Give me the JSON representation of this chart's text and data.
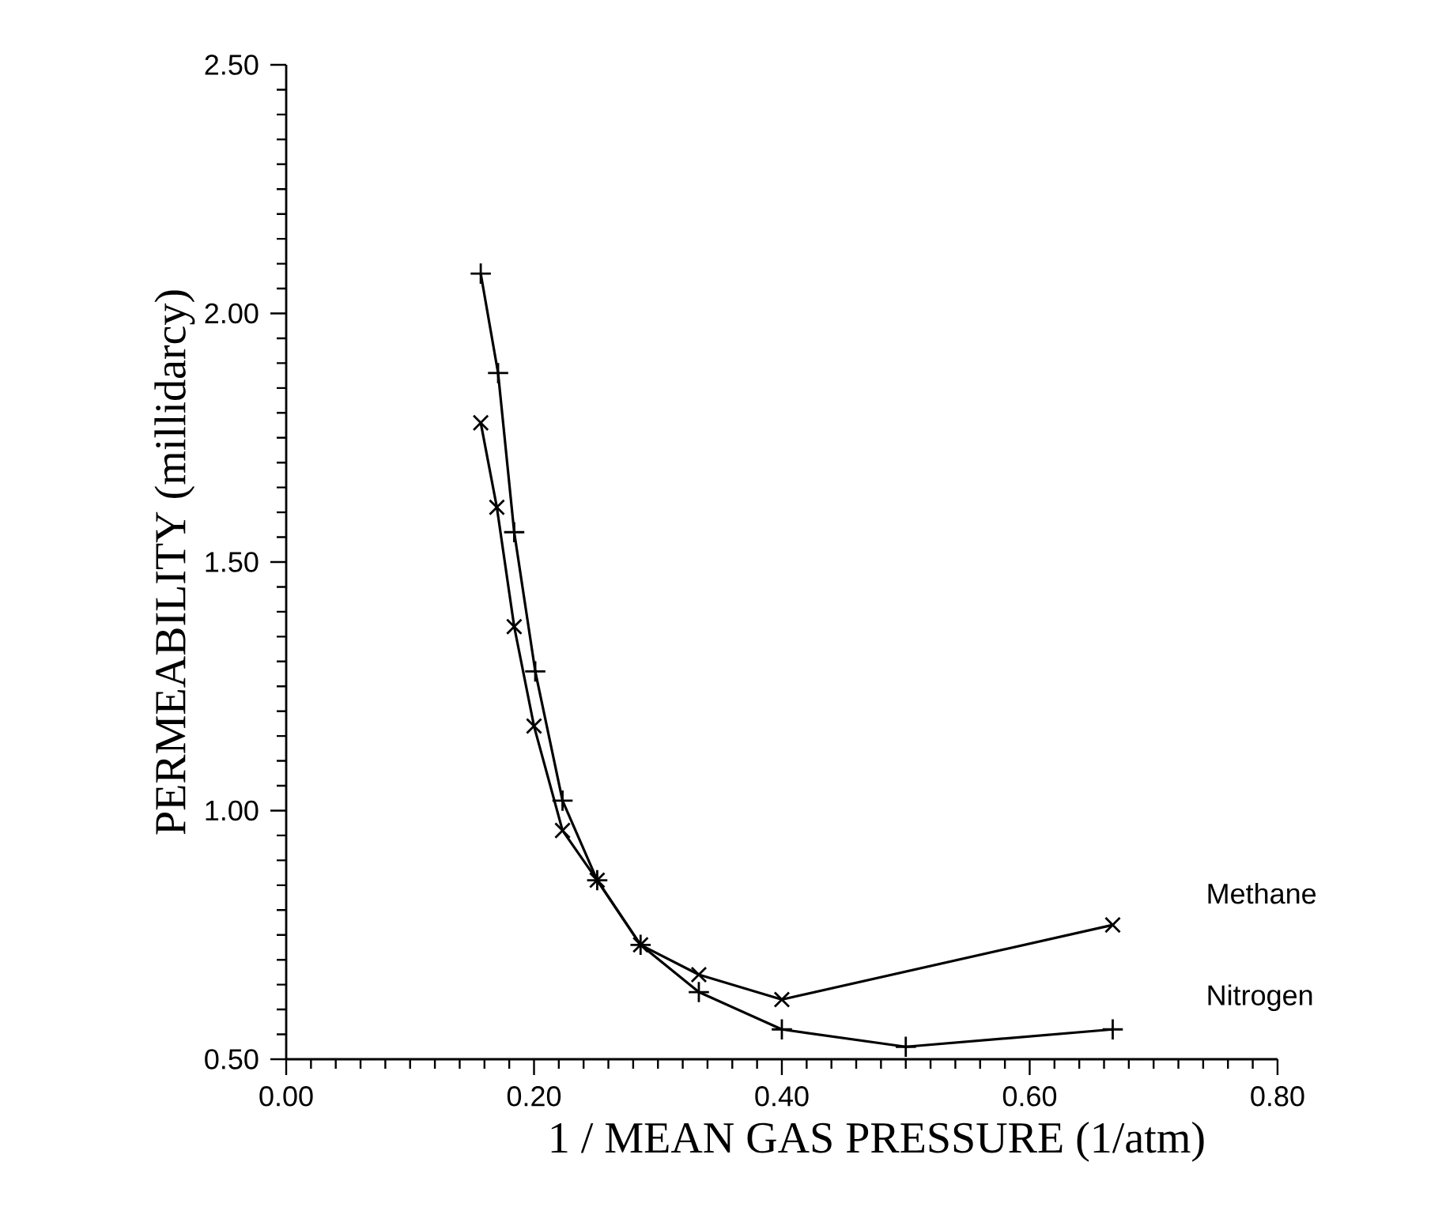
{
  "chart_data": {
    "type": "line",
    "xlabel": "1 / MEAN GAS PRESSURE (1/atm)",
    "ylabel": "PERMEABILITY (millidarcy)",
    "xlim": [
      0.0,
      0.8
    ],
    "ylim": [
      0.5,
      2.5
    ],
    "xticks": [
      {
        "value": 0,
        "label": "0.00"
      },
      {
        "value": 0.2,
        "label": "0.20"
      },
      {
        "value": 0.4,
        "label": "0.40"
      },
      {
        "value": 0.6,
        "label": "0.60"
      },
      {
        "value": 0.8,
        "label": "0.80"
      }
    ],
    "yticks": [
      {
        "value": 0.5,
        "label": "0.50"
      },
      {
        "value": 1,
        "label": "1.00"
      },
      {
        "value": 1.5,
        "label": "1.50"
      },
      {
        "value": 2,
        "label": "2.00"
      },
      {
        "value": 2.5,
        "label": "2.50"
      }
    ],
    "grid": false,
    "legend": false,
    "line_style": "solid",
    "series": [
      {
        "name": "Methane",
        "color": "#000000",
        "marker": "cross",
        "x": [
          0.157,
          0.17,
          0.184,
          0.2,
          0.223,
          0.251,
          0.286,
          0.333,
          0.4,
          0.667
        ],
        "values": [
          1.78,
          1.61,
          1.37,
          1.17,
          0.96,
          0.86,
          0.73,
          0.67,
          0.62,
          0.77
        ]
      },
      {
        "name": "Nitrogen",
        "color": "#000000",
        "marker": "plus",
        "x": [
          0.157,
          0.171,
          0.184,
          0.201,
          0.223,
          0.251,
          0.286,
          0.333,
          0.4,
          0.5,
          0.667
        ],
        "values": [
          2.08,
          1.88,
          1.56,
          1.28,
          1.02,
          0.86,
          0.73,
          0.635,
          0.56,
          0.525,
          0.56
        ]
      }
    ]
  }
}
